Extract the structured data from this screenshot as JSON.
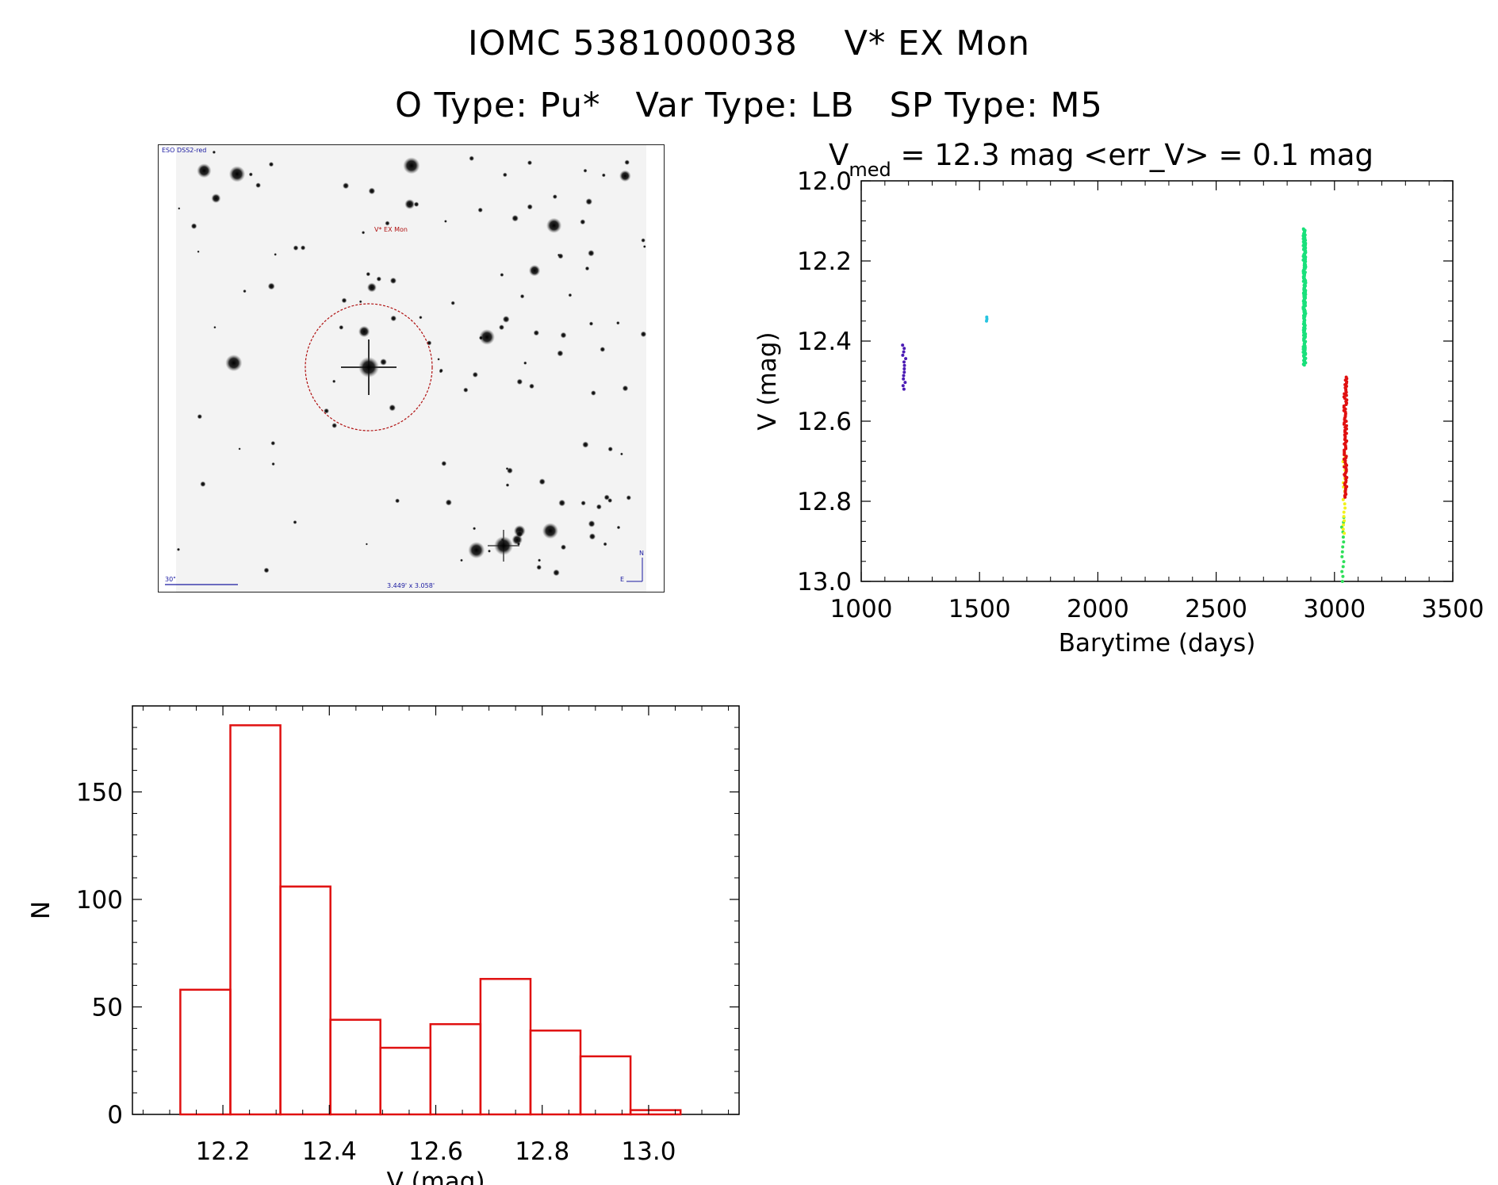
{
  "header": {
    "title_line1": "IOMC 5381000038    V* EX Mon",
    "title_line2": "O Type: Pu*   Var Type: LB   SP Type: M5"
  },
  "finder_chart": {
    "survey_label": "ESO DSS2-red",
    "target_label": "V* EX Mon",
    "scale_label": "30\"",
    "fov_label": "3.449' x 3.058'",
    "north_label": "N",
    "east_label": "E",
    "circle_color": "#b01010",
    "label_color": "#1a1aa0"
  },
  "chart_data": [
    {
      "type": "scatter",
      "title_prefix": "V",
      "title_subscript": "med",
      "title_rest": " = 12.3 mag <err_V> = 0.1 mag",
      "xlabel": "Barytime (days)",
      "ylabel": "V (mag)",
      "xlim": [
        1000,
        3500
      ],
      "ylim": [
        13.0,
        12.0
      ],
      "y_inverted": true,
      "x_ticks": [
        "1000",
        "1500",
        "2000",
        "2500",
        "3000",
        "3500"
      ],
      "y_ticks": [
        "12.0",
        "12.2",
        "12.4",
        "12.6",
        "12.8",
        "13.0"
      ],
      "grid": false,
      "series": [
        {
          "color": "#4b1bb4",
          "x_range": [
            1175,
            1190
          ],
          "y_range": [
            12.41,
            12.52
          ],
          "approx_points": 14
        },
        {
          "color": "#27c4e0",
          "x_range": [
            1528,
            1532
          ],
          "y_range": [
            12.34,
            12.35
          ],
          "approx_points": 3
        },
        {
          "color": "#19e07a",
          "x_range": [
            2868,
            2878
          ],
          "y_range": [
            12.12,
            12.46
          ],
          "approx_points": 180
        },
        {
          "color": "#2ee05a",
          "x_range": [
            3030,
            3040
          ],
          "y_range": [
            12.84,
            13.0
          ],
          "approx_points": 14
        },
        {
          "color": "#f2f21a",
          "x_range": [
            3036,
            3046
          ],
          "y_range": [
            12.68,
            12.88
          ],
          "approx_points": 20
        },
        {
          "color": "#e01010",
          "x_range": [
            3040,
            3052
          ],
          "y_range": [
            12.49,
            12.79
          ],
          "approx_points": 80
        }
      ]
    },
    {
      "type": "bar",
      "subtype": "histogram",
      "xlabel": "V (mag)",
      "ylabel": "N",
      "xlim": [
        12.03,
        13.17
      ],
      "ylim": [
        0,
        190
      ],
      "x_ticks": [
        "12.2",
        "12.4",
        "12.6",
        "12.8",
        "13.0"
      ],
      "y_ticks": [
        "0",
        "50",
        "100",
        "150"
      ],
      "bar_color": "#e01010",
      "bin_edges": [
        12.12,
        12.214,
        12.308,
        12.402,
        12.496,
        12.59,
        12.684,
        12.778,
        12.872,
        12.966,
        13.06
      ],
      "values": [
        58,
        181,
        106,
        44,
        31,
        42,
        63,
        39,
        27,
        2
      ]
    }
  ]
}
